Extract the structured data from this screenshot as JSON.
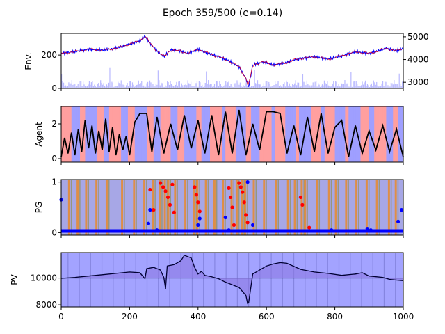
{
  "title": "Epoch 359/500 (e=0.14)",
  "colors": {
    "price_up": "#ff0000",
    "price_down": "#0000ff",
    "volume": "#8080ff",
    "agent_line": "#000000",
    "pv_line": "#000033",
    "pv_fill": "#8080ff",
    "pg_high": "#ff0000",
    "pg_low": "#0000ff",
    "band_a": "#ff9f9f",
    "band_b": "#9f9fff",
    "band_pg": "#e88a2a"
  },
  "chart_data": [
    {
      "name": "env",
      "type": "line",
      "ylabel": "Env.",
      "xlim": [
        0,
        1000
      ],
      "ylim_left": [
        0,
        330
      ],
      "yticks_left": [
        "0",
        "200"
      ],
      "ylim_right": [
        2730,
        5150
      ],
      "yticks_right": [
        "3000",
        "4000",
        "5000"
      ],
      "price_x": [
        0,
        40,
        80,
        120,
        160,
        200,
        230,
        245,
        260,
        280,
        300,
        320,
        345,
        370,
        400,
        430,
        460,
        490,
        520,
        540,
        548,
        560,
        590,
        620,
        650,
        680,
        700,
        740,
        780,
        820,
        860,
        900,
        920,
        950,
        980,
        1000
      ],
      "price_y": [
        210,
        220,
        235,
        230,
        240,
        265,
        285,
        315,
        270,
        225,
        190,
        230,
        225,
        210,
        235,
        210,
        190,
        165,
        130,
        60,
        10,
        140,
        160,
        140,
        150,
        170,
        180,
        190,
        175,
        195,
        220,
        210,
        220,
        240,
        225,
        240
      ],
      "volume_note": "faint bars along the bottom"
    },
    {
      "name": "agent",
      "type": "line",
      "ylabel": "Agent",
      "xlim": [
        0,
        1000
      ],
      "ylim": [
        -0.2,
        3.0
      ],
      "yticks": [
        "0",
        "2"
      ],
      "x": [
        0,
        10,
        20,
        30,
        40,
        50,
        60,
        70,
        80,
        90,
        100,
        110,
        120,
        130,
        140,
        150,
        160,
        170,
        180,
        190,
        200,
        215,
        230,
        250,
        265,
        280,
        300,
        320,
        340,
        360,
        380,
        400,
        420,
        440,
        460,
        480,
        500,
        520,
        540,
        560,
        580,
        600,
        620,
        640,
        660,
        680,
        700,
        720,
        740,
        760,
        780,
        800,
        820,
        840,
        860,
        880,
        900,
        920,
        940,
        960,
        980,
        1000
      ],
      "y": [
        0.1,
        1.2,
        0.3,
        1.5,
        0.2,
        1.7,
        0.4,
        2.2,
        0.6,
        1.9,
        0.3,
        1.6,
        0.5,
        2.3,
        0.4,
        1.8,
        0.2,
        1.4,
        0.5,
        1.3,
        0.2,
        2.1,
        2.6,
        2.6,
        0.4,
        2.4,
        0.3,
        2.0,
        0.5,
        2.5,
        0.6,
        2.2,
        0.3,
        2.5,
        0.2,
        2.7,
        0.3,
        2.8,
        0.2,
        2.0,
        0.5,
        2.7,
        2.7,
        2.6,
        0.3,
        1.9,
        0.2,
        2.4,
        0.4,
        2.6,
        0.3,
        1.8,
        2.2,
        0.1,
        1.9,
        0.3,
        1.6,
        0.5,
        1.9,
        0.4,
        1.7,
        0.1
      ]
    },
    {
      "name": "pg",
      "type": "scatter",
      "ylabel": "PG",
      "xlim": [
        0,
        1000
      ],
      "ylim": [
        -0.05,
        1.05
      ],
      "yticks": [
        "0",
        "1"
      ],
      "high_points": [
        [
          260,
          0.85
        ],
        [
          270,
          0.45
        ],
        [
          290,
          0.98
        ],
        [
          298,
          0.9
        ],
        [
          305,
          0.82
        ],
        [
          312,
          0.7
        ],
        [
          318,
          0.55
        ],
        [
          325,
          0.95
        ],
        [
          330,
          0.4
        ],
        [
          390,
          0.9
        ],
        [
          395,
          0.75
        ],
        [
          400,
          0.6
        ],
        [
          405,
          0.42
        ],
        [
          490,
          0.88
        ],
        [
          495,
          0.7
        ],
        [
          500,
          0.5
        ],
        [
          505,
          0.15
        ],
        [
          520,
          0.98
        ],
        [
          525,
          0.9
        ],
        [
          530,
          0.8
        ],
        [
          535,
          0.6
        ],
        [
          540,
          0.35
        ],
        [
          545,
          0.2
        ],
        [
          700,
          0.7
        ],
        [
          705,
          0.55
        ],
        [
          725,
          0.1
        ]
      ],
      "low_points": [
        [
          0,
          0.65
        ],
        [
          255,
          0.18
        ],
        [
          260,
          0.45
        ],
        [
          280,
          0.05
        ],
        [
          400,
          0.15
        ],
        [
          405,
          0.28
        ],
        [
          480,
          0.3
        ],
        [
          490,
          0.05
        ],
        [
          545,
          1.0
        ],
        [
          560,
          0.15
        ],
        [
          790,
          0.05
        ],
        [
          895,
          0.08
        ],
        [
          905,
          0.05
        ],
        [
          985,
          0.22
        ],
        [
          995,
          0.45
        ]
      ],
      "band_x": [
        20,
        45,
        70,
        100,
        130,
        175,
        210,
        240,
        265,
        285,
        300,
        310,
        330,
        360,
        385,
        395,
        420,
        445,
        470,
        495,
        510,
        525,
        535,
        560,
        590,
        625,
        660,
        680,
        700,
        710,
        745,
        780,
        800,
        830,
        860,
        890,
        920,
        955,
        975
      ]
    },
    {
      "name": "pv",
      "type": "area",
      "ylabel": "PV",
      "xlim": [
        0,
        1000
      ],
      "ylim": [
        7850,
        11900
      ],
      "yticks": [
        "8000",
        "10000"
      ],
      "baseline": 10000,
      "x": [
        0,
        40,
        80,
        120,
        160,
        200,
        230,
        245,
        250,
        270,
        290,
        300,
        305,
        310,
        330,
        350,
        360,
        380,
        390,
        400,
        410,
        420,
        440,
        460,
        480,
        500,
        520,
        540,
        545,
        548,
        560,
        580,
        600,
        620,
        640,
        660,
        700,
        740,
        780,
        820,
        860,
        880,
        900,
        940,
        960,
        980,
        1000
      ],
      "y": [
        9980,
        10050,
        10150,
        10250,
        10350,
        10450,
        10400,
        9950,
        10700,
        10800,
        10600,
        10050,
        9200,
        10900,
        11000,
        11300,
        11700,
        11500,
        10800,
        10300,
        10500,
        10200,
        10100,
        9950,
        9700,
        9500,
        9300,
        8700,
        8100,
        8150,
        10300,
        10600,
        10900,
        11050,
        11150,
        11100,
        10650,
        10450,
        10350,
        10200,
        10300,
        10400,
        10150,
        10050,
        9900,
        9850,
        9800
      ]
    }
  ],
  "xaxis": {
    "ticks": [
      "0",
      "200",
      "400",
      "600",
      "800",
      "1000"
    ]
  }
}
